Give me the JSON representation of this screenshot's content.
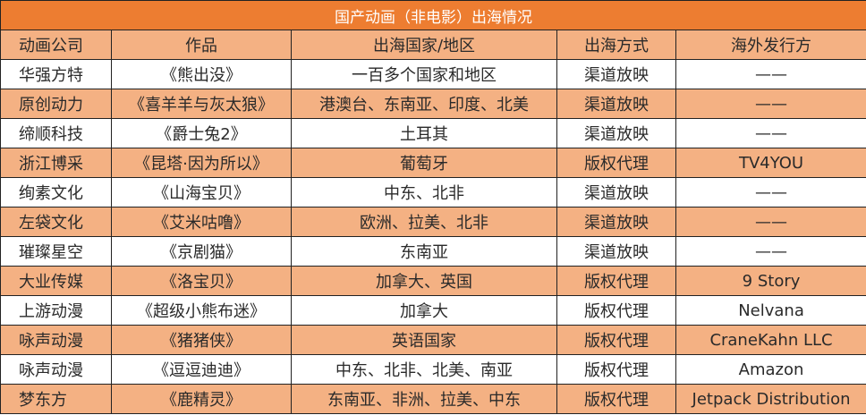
{
  "title": "国产动画（非电影）出海情况",
  "colors": {
    "title_bg": "#ED7D31",
    "header_bg": "#F4B183",
    "alt_row_bg": "#F4B183"
  },
  "columns": [
    "动画公司",
    "作品",
    "出海国家/地区",
    "出海方式",
    "海外发行方"
  ],
  "rows": [
    [
      "华强方特",
      "《熊出没》",
      "一百多个国家和地区",
      "渠道放映",
      "——"
    ],
    [
      "原创动力",
      "《喜羊羊与灰太狼》",
      "港澳台、东南亚、印度、北美",
      "渠道放映",
      "——"
    ],
    [
      "缔顺科技",
      "《爵士兔2》",
      "土耳其",
      "渠道放映",
      "——"
    ],
    [
      "浙江博采",
      "《昆塔·因为所以》",
      "葡萄牙",
      "版权代理",
      "TV4YOU"
    ],
    [
      "绚素文化",
      "《山海宝贝》",
      "中东、北非",
      "渠道放映",
      "——"
    ],
    [
      "左袋文化",
      "《艾米咕噜》",
      "欧洲、拉美、北非",
      "渠道放映",
      "——"
    ],
    [
      "璀璨星空",
      "《京剧猫》",
      "东南亚",
      "渠道放映",
      "——"
    ],
    [
      "大业传媒",
      "《洛宝贝》",
      "加拿大、英国",
      "版权代理",
      "9 Story"
    ],
    [
      "上游动漫",
      "《超级小熊布迷》",
      "加拿大",
      "版权代理",
      "Nelvana"
    ],
    [
      "咏声动漫",
      "《猪猪侠》",
      "英语国家",
      "版权代理",
      "CraneKahn LLC"
    ],
    [
      "咏声动漫",
      "《逗逗迪迪》",
      "中东、北非、北美、南亚",
      "版权代理",
      "Amazon"
    ],
    [
      "梦东方",
      "《鹿精灵》",
      "东南亚、非洲、拉美、中东",
      "版权代理",
      "Jetpack Distribution"
    ]
  ]
}
